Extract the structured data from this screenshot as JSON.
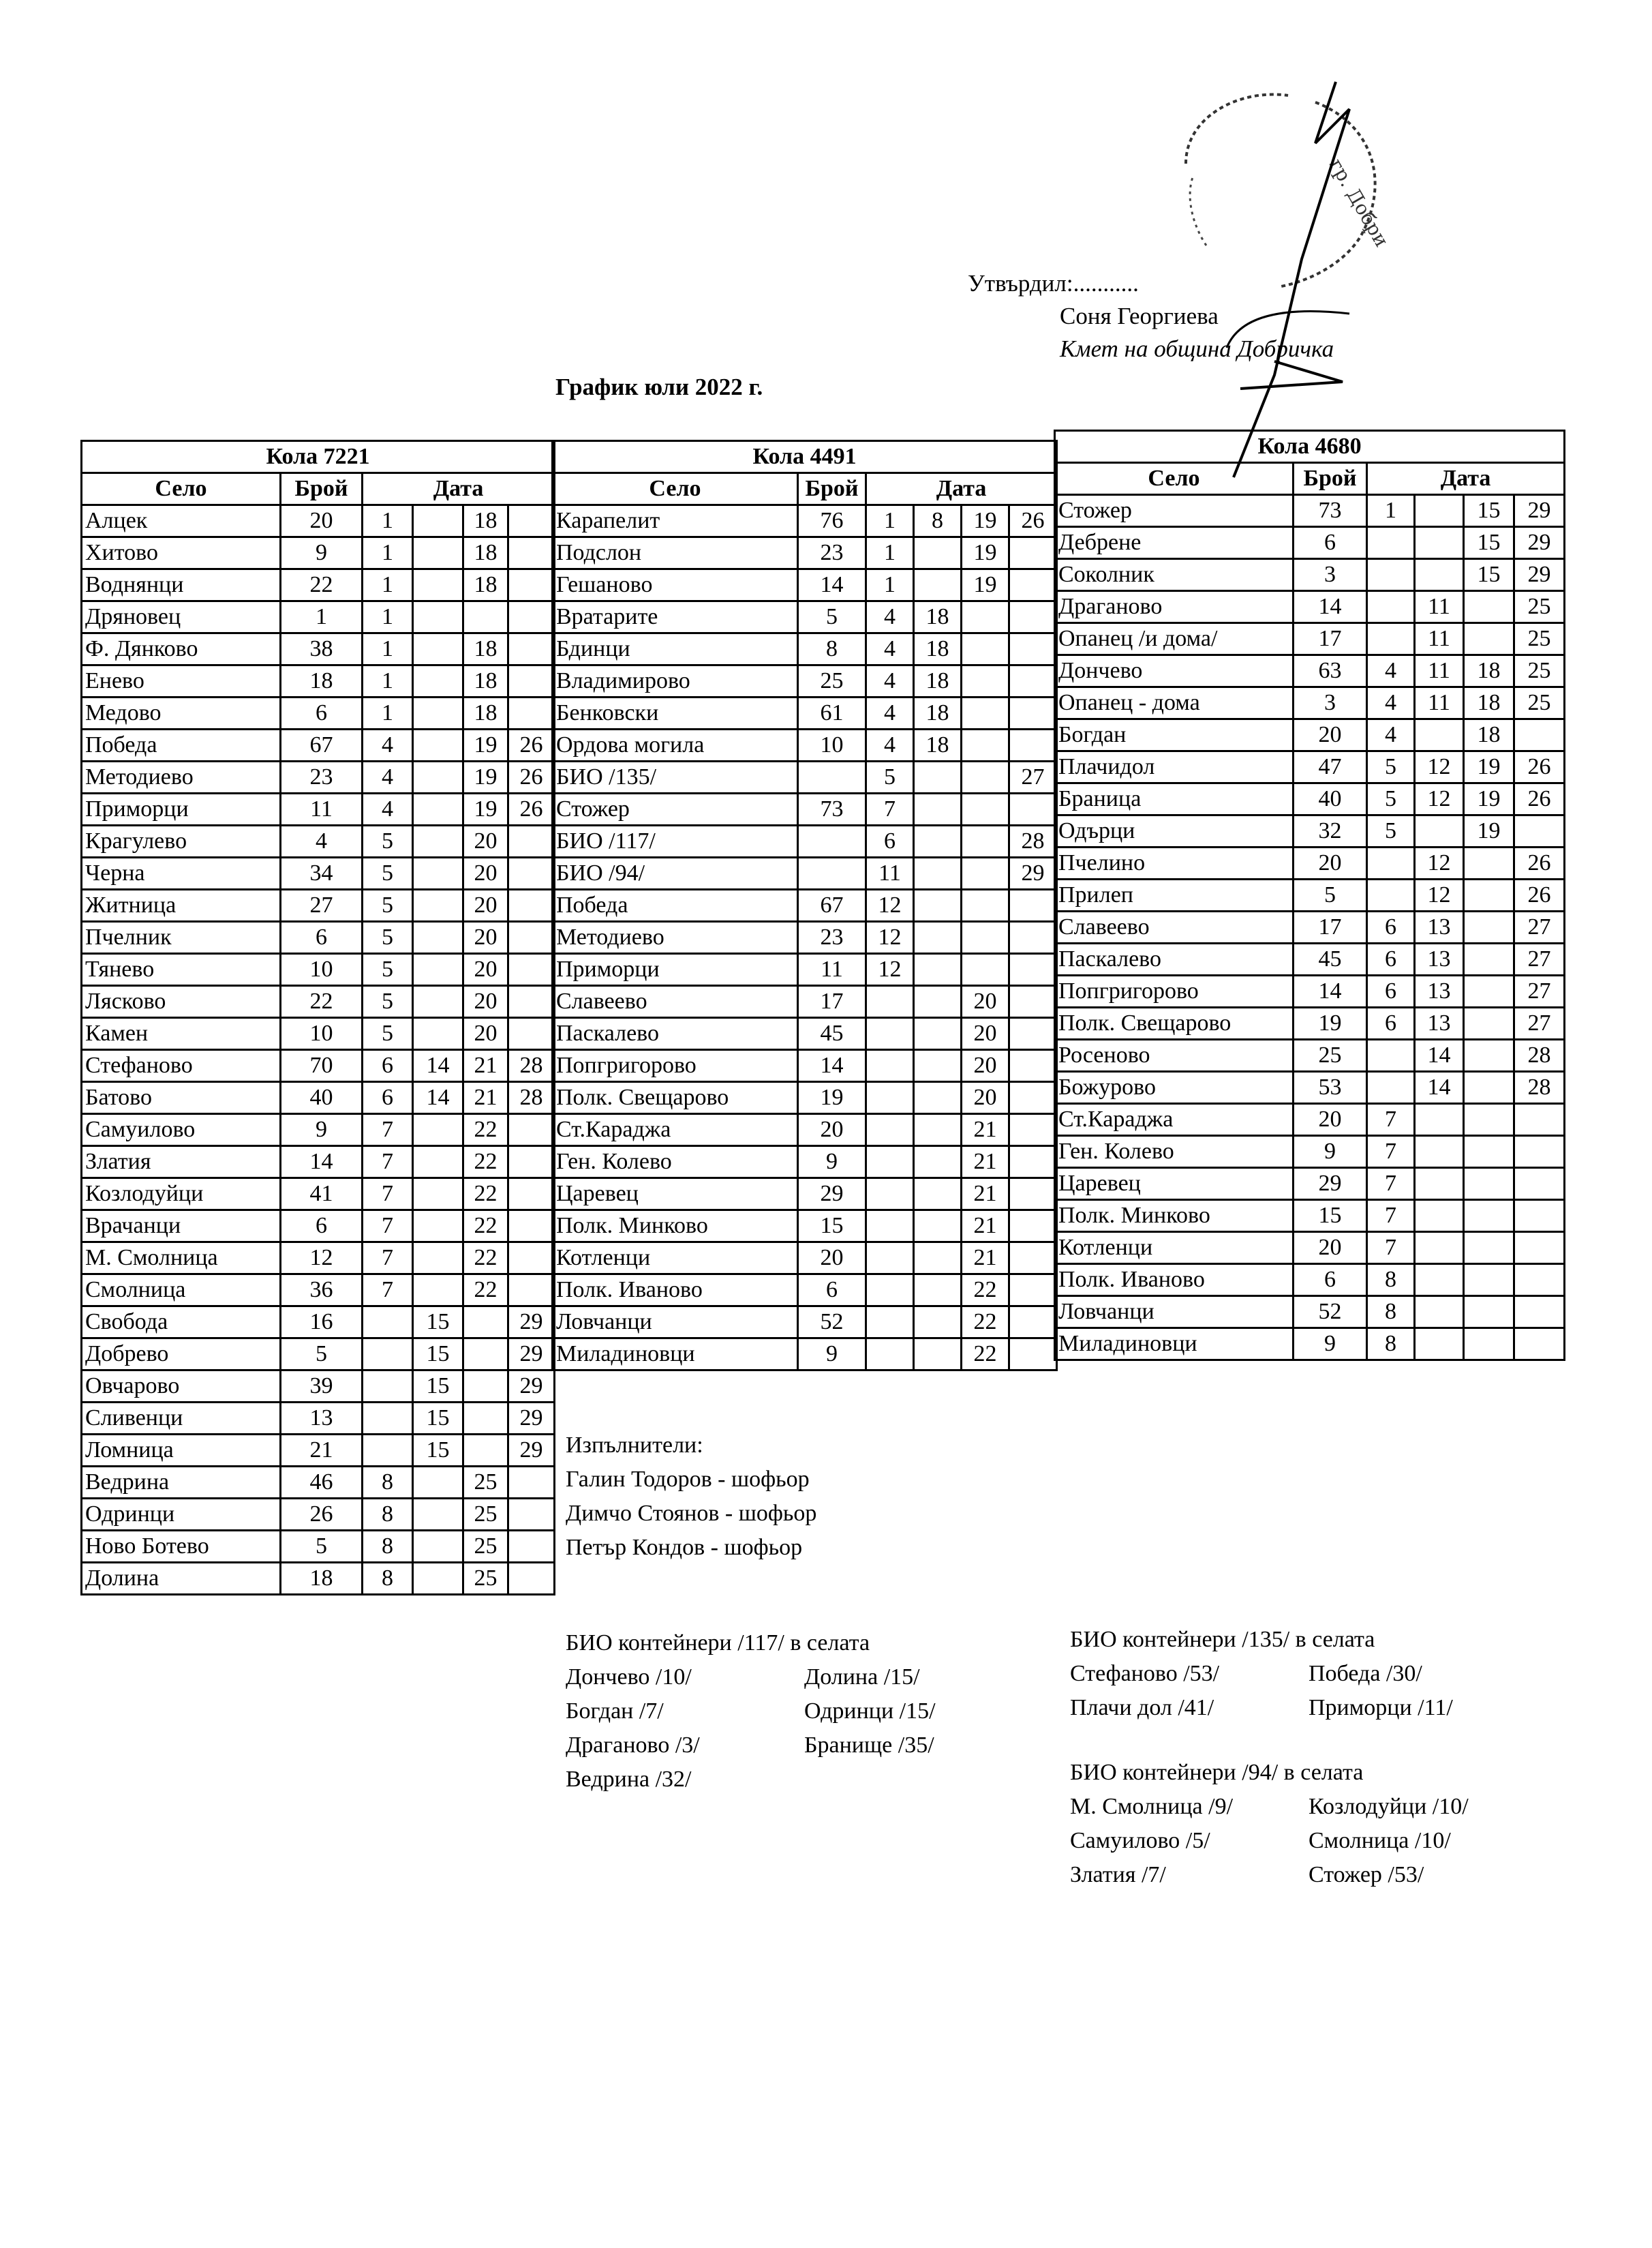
{
  "approval": {
    "approved_label": "Утвърдил:...........",
    "name": "Соня Георгиева",
    "position": "Кмет  на община Добричка"
  },
  "title": "График юли 2022 г.",
  "headers": {
    "village": "Село",
    "count": "Брой",
    "date": "Дата"
  },
  "vehicles": [
    {
      "label": "Кола 7221",
      "rows": [
        [
          "Алцек",
          "20",
          "1",
          "",
          "18",
          ""
        ],
        [
          "Хитово",
          "9",
          "1",
          "",
          "18",
          ""
        ],
        [
          "Воднянци",
          "22",
          "1",
          "",
          "18",
          ""
        ],
        [
          "Дряновец",
          "1",
          "1",
          "",
          "",
          ""
        ],
        [
          "Ф. Дянково",
          "38",
          "1",
          "",
          "18",
          ""
        ],
        [
          "Енево",
          "18",
          "1",
          "",
          "18",
          ""
        ],
        [
          "Медово",
          "6",
          "1",
          "",
          "18",
          ""
        ],
        [
          "Победа",
          "67",
          "4",
          "",
          "19",
          "26"
        ],
        [
          "Методиево",
          "23",
          "4",
          "",
          "19",
          "26"
        ],
        [
          "Приморци",
          "11",
          "4",
          "",
          "19",
          "26"
        ],
        [
          "Крагулево",
          "4",
          "5",
          "",
          "20",
          ""
        ],
        [
          "Черна",
          "34",
          "5",
          "",
          "20",
          ""
        ],
        [
          "Житница",
          "27",
          "5",
          "",
          "20",
          ""
        ],
        [
          "Пчелник",
          "6",
          "5",
          "",
          "20",
          ""
        ],
        [
          "Тянево",
          "10",
          "5",
          "",
          "20",
          ""
        ],
        [
          "Лясково",
          "22",
          "5",
          "",
          "20",
          ""
        ],
        [
          "Камен",
          "10",
          "5",
          "",
          "20",
          ""
        ],
        [
          "Стефаново",
          "70",
          "6",
          "14",
          "21",
          "28"
        ],
        [
          "Батово",
          "40",
          "6",
          "14",
          "21",
          "28"
        ],
        [
          "Самуилово",
          "9",
          "7",
          "",
          "22",
          ""
        ],
        [
          "Златия",
          "14",
          "7",
          "",
          "22",
          ""
        ],
        [
          "Козлодуйци",
          "41",
          "7",
          "",
          "22",
          ""
        ],
        [
          "Врачанци",
          "6",
          "7",
          "",
          "22",
          ""
        ],
        [
          "М. Смолница",
          "12",
          "7",
          "",
          "22",
          ""
        ],
        [
          "Смолница",
          "36",
          "7",
          "",
          "22",
          ""
        ],
        [
          "Свобода",
          "16",
          "",
          "15",
          "",
          "29"
        ],
        [
          "Добрево",
          "5",
          "",
          "15",
          "",
          "29"
        ],
        [
          "Овчарово",
          "39",
          "",
          "15",
          "",
          "29"
        ],
        [
          "Сливенци",
          "13",
          "",
          "15",
          "",
          "29"
        ],
        [
          "Ломница",
          "21",
          "",
          "15",
          "",
          "29"
        ],
        [
          "Ведрина",
          "46",
          "8",
          "",
          "25",
          ""
        ],
        [
          "Одринци",
          "26",
          "8",
          "",
          "25",
          ""
        ],
        [
          "Ново Ботево",
          "5",
          "8",
          "",
          "25",
          ""
        ],
        [
          "Долина",
          "18",
          "8",
          "",
          "25",
          ""
        ]
      ]
    },
    {
      "label": "Кола 4491",
      "rows": [
        [
          "Карапелит",
          "76",
          "1",
          "8",
          "19",
          "26"
        ],
        [
          "Подслон",
          "23",
          "1",
          "",
          "19",
          ""
        ],
        [
          "Гешаново",
          "14",
          "1",
          "",
          "19",
          ""
        ],
        [
          "Вратарите",
          "5",
          "4",
          "18",
          "",
          ""
        ],
        [
          "Бдинци",
          "8",
          "4",
          "18",
          "",
          ""
        ],
        [
          "Владимирово",
          "25",
          "4",
          "18",
          "",
          ""
        ],
        [
          "Бенковски",
          "61",
          "4",
          "18",
          "",
          ""
        ],
        [
          "Ордова могила",
          "10",
          "4",
          "18",
          "",
          ""
        ],
        [
          "БИО /135/",
          "",
          "5",
          "",
          "",
          "27"
        ],
        [
          "Стожер",
          "73",
          "7",
          "",
          "",
          ""
        ],
        [
          "БИО /117/",
          "",
          "6",
          "",
          "",
          "28"
        ],
        [
          "БИО /94/",
          "",
          "11",
          "",
          "",
          "29"
        ],
        [
          "Победа",
          "67",
          "12",
          "",
          "",
          ""
        ],
        [
          "Методиево",
          "23",
          "12",
          "",
          "",
          ""
        ],
        [
          "Приморци",
          "11",
          "12",
          "",
          "",
          ""
        ],
        [
          "Славеево",
          "17",
          "",
          "",
          "20",
          ""
        ],
        [
          "Паскалево",
          "45",
          "",
          "",
          "20",
          ""
        ],
        [
          "Попгригорово",
          "14",
          "",
          "",
          "20",
          ""
        ],
        [
          "Полк. Свещарово",
          "19",
          "",
          "",
          "20",
          ""
        ],
        [
          "Ст.Караджа",
          "20",
          "",
          "",
          "21",
          ""
        ],
        [
          "Ген. Колево",
          "9",
          "",
          "",
          "21",
          ""
        ],
        [
          "Царевец",
          "29",
          "",
          "",
          "21",
          ""
        ],
        [
          "Полк. Минково",
          "15",
          "",
          "",
          "21",
          ""
        ],
        [
          "Котленци",
          "20",
          "",
          "",
          "21",
          ""
        ],
        [
          "Полк. Иваново",
          "6",
          "",
          "",
          "22",
          ""
        ],
        [
          "Ловчанци",
          "52",
          "",
          "",
          "22",
          ""
        ],
        [
          "Миладиновци",
          "9",
          "",
          "",
          "22",
          ""
        ]
      ]
    },
    {
      "label": "Кола 4680",
      "rows": [
        [
          "Стожер",
          "73",
          "1",
          "",
          "15",
          "29"
        ],
        [
          "Дебрене",
          "6",
          "",
          "",
          "15",
          "29"
        ],
        [
          "Соколник",
          "3",
          "",
          "",
          "15",
          "29"
        ],
        [
          "Драганово",
          "14",
          "",
          "11",
          "",
          "25"
        ],
        [
          "Опанец /и дома/",
          "17",
          "",
          "11",
          "",
          "25"
        ],
        [
          "Дончево",
          "63",
          "4",
          "11",
          "18",
          "25"
        ],
        [
          "Опанец - дома",
          "3",
          "4",
          "11",
          "18",
          "25"
        ],
        [
          "Богдан",
          "20",
          "4",
          "",
          "18",
          ""
        ],
        [
          "Плачидол",
          "47",
          "5",
          "12",
          "19",
          "26"
        ],
        [
          "Браница",
          "40",
          "5",
          "12",
          "19",
          "26"
        ],
        [
          "Одърци",
          "32",
          "5",
          "",
          "19",
          ""
        ],
        [
          "Пчелино",
          "20",
          "",
          "12",
          "",
          "26"
        ],
        [
          "Прилеп",
          "5",
          "",
          "12",
          "",
          "26"
        ],
        [
          "Славеево",
          "17",
          "6",
          "13",
          "",
          "27"
        ],
        [
          "Паскалево",
          "45",
          "6",
          "13",
          "",
          "27"
        ],
        [
          "Попгригорово",
          "14",
          "6",
          "13",
          "",
          "27"
        ],
        [
          "Полк. Свещарово",
          "19",
          "6",
          "13",
          "",
          "27"
        ],
        [
          "Росеново",
          "25",
          "",
          "14",
          "",
          "28"
        ],
        [
          "Божурово",
          "53",
          "",
          "14",
          "",
          "28"
        ],
        [
          "Ст.Караджа",
          "20",
          "7",
          "",
          "",
          ""
        ],
        [
          "Ген. Колево",
          "9",
          "7",
          "",
          "",
          ""
        ],
        [
          "Царевец",
          "29",
          "7",
          "",
          "",
          ""
        ],
        [
          "Полк. Минково",
          "15",
          "7",
          "",
          "",
          ""
        ],
        [
          "Котленци",
          "20",
          "7",
          "",
          "",
          ""
        ],
        [
          "Полк. Иваново",
          "6",
          "8",
          "",
          "",
          ""
        ],
        [
          "Ловчанци",
          "52",
          "8",
          "",
          "",
          ""
        ],
        [
          "Миладиновци",
          "9",
          "8",
          "",
          "",
          ""
        ]
      ]
    }
  ],
  "executors": {
    "label": "Изпълнители:",
    "names": [
      "Галин Тодоров - шофьор",
      "Димчо Стоянов - шофьор",
      "Петър Кондов - шофьор"
    ]
  },
  "bio": [
    {
      "title": "БИО контейнери /117/ в селата",
      "col1": [
        "Дончево /10/",
        "Богдан /7/",
        "Драганово /3/",
        "Ведрина /32/"
      ],
      "col2": [
        "Долина /15/",
        "Одринци /15/",
        "Бранище /35/"
      ]
    },
    {
      "title": "БИО контейнери /135/ в селата",
      "col1": [
        "Стефаново /53/",
        "Плачи дол /41/"
      ],
      "col2": [
        "Победа /30/",
        "Приморци /11/"
      ]
    },
    {
      "title": "БИО контейнери /94/ в селата",
      "col1": [
        "М. Смолница /9/",
        "Самуилово /5/",
        "Златия /7/"
      ],
      "col2": [
        "Козлодуйци /10/",
        "Смолница /10/",
        "Стожер /53/"
      ]
    }
  ]
}
